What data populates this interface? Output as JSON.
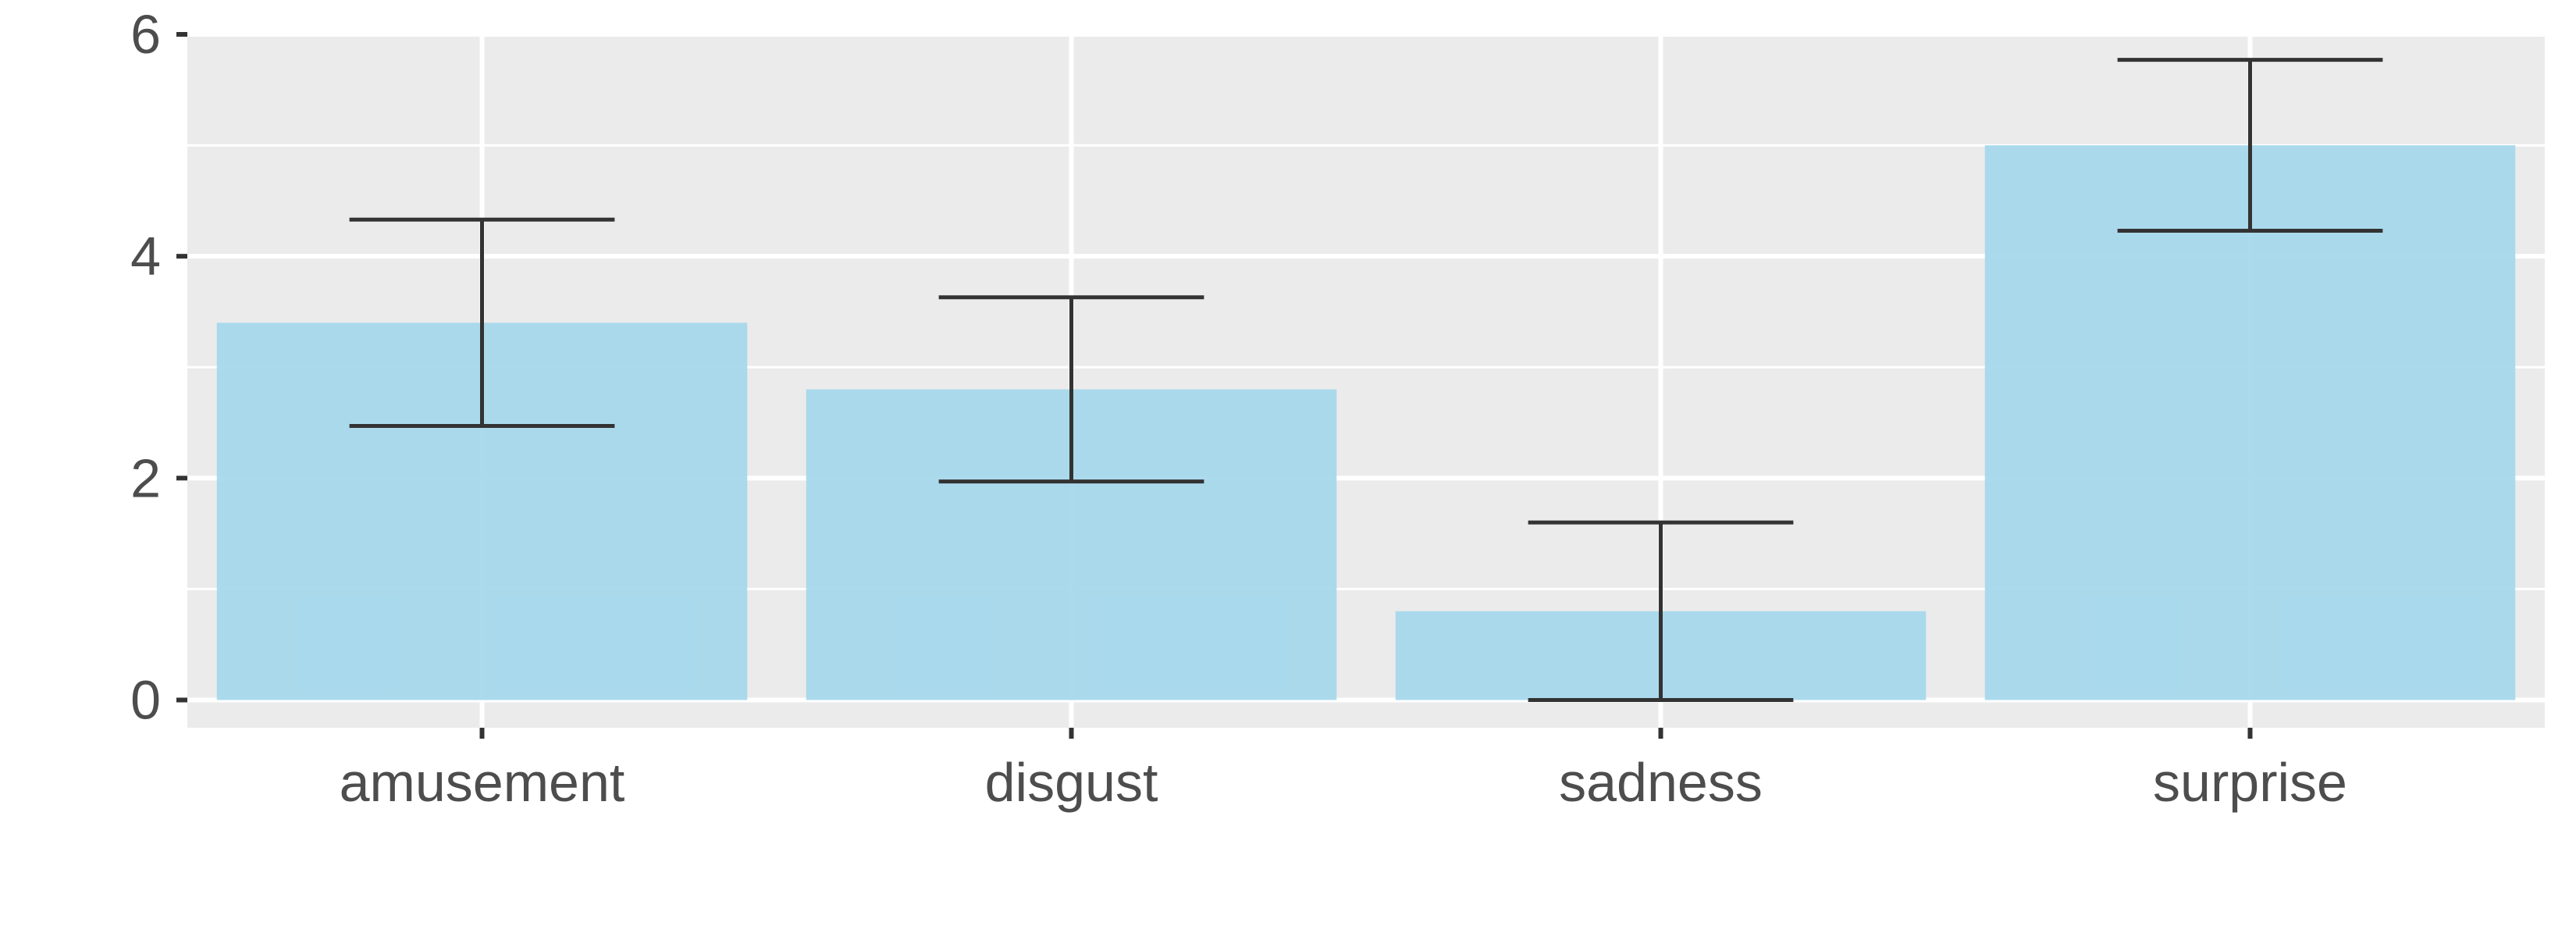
{
  "chart_data": {
    "type": "bar",
    "categories": [
      "amusement",
      "disgust",
      "sadness",
      "surprise"
    ],
    "values": [
      3.4,
      2.8,
      0.8,
      5.0
    ],
    "error_bars": {
      "lower": [
        2.47,
        1.97,
        0.0,
        4.23
      ],
      "upper": [
        4.33,
        3.63,
        1.6,
        5.77
      ]
    },
    "ylim": [
      -0.25,
      6.0
    ],
    "y_ticks": [
      0,
      2,
      4,
      6
    ],
    "y_minor_ticks": [
      1,
      3,
      5
    ],
    "title": "",
    "xlabel": "",
    "ylabel": "",
    "grid": true,
    "colors": {
      "bar": "#a6d8ec",
      "panel": "#ebebeb",
      "grid": "#ffffff",
      "error_bar": "#333333",
      "tick": "#333333",
      "text": "#4d4d4d"
    }
  }
}
